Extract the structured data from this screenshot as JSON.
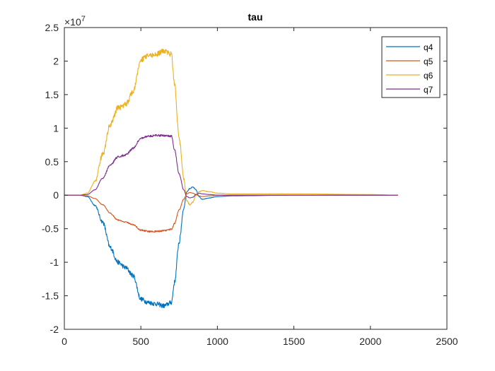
{
  "chart_data": {
    "type": "line",
    "title": "tau",
    "xlabel": "",
    "ylabel": "",
    "xlim": [
      0,
      2500
    ],
    "ylim": [
      -2,
      2.5
    ],
    "y_exponent_label": "×10",
    "y_exponent_power": "7",
    "x_ticks": [
      0,
      500,
      1000,
      1500,
      2000,
      2500
    ],
    "x_tick_labels": [
      "0",
      "500",
      "1000",
      "1500",
      "2000",
      "2500"
    ],
    "y_ticks": [
      -2,
      -1.5,
      -1,
      -0.5,
      0,
      0.5,
      1,
      1.5,
      2,
      2.5
    ],
    "y_tick_labels": [
      "-2",
      "-1.5",
      "-1",
      "-0.5",
      "0",
      "0.5",
      "1",
      "1.5",
      "2",
      "2.5"
    ],
    "grid": false,
    "legend_position": "top-right",
    "series": [
      {
        "name": "q4",
        "color": "#0072BD",
        "noise": 0.035,
        "x": [
          0,
          100,
          150,
          200,
          250,
          300,
          350,
          400,
          450,
          500,
          550,
          600,
          650,
          700,
          720,
          750,
          780,
          800,
          820,
          840,
          860,
          880,
          900,
          950,
          1000,
          1100,
          1500,
          2000,
          2180
        ],
        "y": [
          0,
          0,
          -0.02,
          -0.15,
          -0.4,
          -0.78,
          -1.0,
          -1.08,
          -1.2,
          -1.55,
          -1.6,
          -1.62,
          -1.65,
          -1.6,
          -1.3,
          -0.7,
          -0.2,
          0.05,
          0.1,
          0.12,
          0.08,
          -0.02,
          -0.06,
          -0.04,
          -0.02,
          -0.01,
          0,
          0,
          0
        ]
      },
      {
        "name": "q5",
        "color": "#D95319",
        "noise": 0.012,
        "x": [
          0,
          100,
          150,
          200,
          250,
          300,
          350,
          400,
          450,
          500,
          550,
          600,
          650,
          700,
          720,
          750,
          780,
          800,
          820,
          840,
          860,
          880,
          900,
          950,
          1000,
          1100,
          1500,
          2000,
          2180
        ],
        "y": [
          0,
          0,
          -0.01,
          -0.05,
          -0.14,
          -0.27,
          -0.37,
          -0.4,
          -0.44,
          -0.52,
          -0.54,
          -0.54,
          -0.53,
          -0.51,
          -0.42,
          -0.22,
          -0.06,
          0.02,
          0.04,
          0.03,
          0.01,
          -0.01,
          -0.02,
          -0.01,
          0,
          0,
          0,
          0,
          0
        ]
      },
      {
        "name": "q6",
        "color": "#EDB120",
        "noise": 0.04,
        "x": [
          0,
          100,
          150,
          200,
          250,
          300,
          350,
          400,
          450,
          500,
          550,
          600,
          650,
          700,
          720,
          750,
          780,
          800,
          820,
          840,
          860,
          880,
          900,
          950,
          1000,
          1100,
          1500,
          2000,
          2180
        ],
        "y": [
          0,
          0,
          0.03,
          0.2,
          0.6,
          1.05,
          1.3,
          1.35,
          1.55,
          2.02,
          2.08,
          2.1,
          2.15,
          2.1,
          1.65,
          0.85,
          0.25,
          -0.08,
          -0.14,
          -0.1,
          0.0,
          0.05,
          0.07,
          0.05,
          0.03,
          0.02,
          0.02,
          0.01,
          0
        ]
      },
      {
        "name": "q7",
        "color": "#7E2F8E",
        "noise": 0.015,
        "x": [
          0,
          100,
          150,
          200,
          250,
          300,
          350,
          400,
          450,
          500,
          550,
          600,
          650,
          700,
          720,
          750,
          780,
          800,
          820,
          840,
          860,
          880,
          900,
          950,
          1000,
          1100,
          1500,
          2000,
          2180
        ],
        "y": [
          0,
          0,
          0.01,
          0.08,
          0.25,
          0.45,
          0.57,
          0.6,
          0.7,
          0.85,
          0.88,
          0.89,
          0.89,
          0.88,
          0.68,
          0.32,
          0.08,
          -0.02,
          -0.04,
          -0.03,
          0.01,
          0.03,
          0.02,
          0.01,
          0,
          0,
          0,
          0,
          0
        ]
      }
    ]
  }
}
